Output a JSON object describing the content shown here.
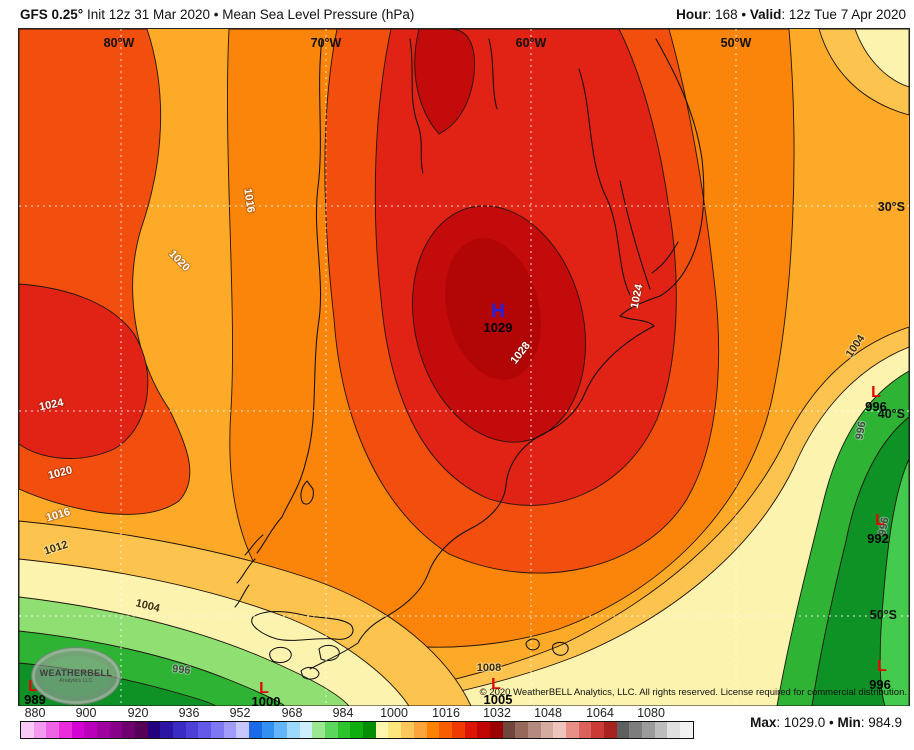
{
  "header": {
    "left_bold": "GFS 0.25°",
    "left_rest": " Init 12z 31 Mar 2020 • Mean Sea Level Pressure (hPa)",
    "right_b1": "Hour",
    "right_t1": ": 168 • ",
    "right_b2": "Valid",
    "right_t2": ": 12z Tue 7 Apr 2020"
  },
  "map": {
    "lon_labels": [
      "80°W",
      "70°W",
      "60°W",
      "50°W"
    ],
    "lat_labels": [
      "30°S",
      "40°S",
      "50°S"
    ],
    "labels": [
      "80°W",
      "70°W",
      "60°W",
      "50°W",
      "30°S",
      "40°S",
      "50°S",
      "H",
      "1029",
      "1016",
      "1020",
      "1024",
      "1020",
      "1016",
      "1012",
      "1028",
      "1024",
      "1004",
      "1004",
      "996",
      "1008",
      "996",
      "996",
      "L",
      "1000",
      "L",
      "989",
      "L",
      "1005",
      "L",
      "996",
      "L",
      "992",
      "L",
      "996"
    ],
    "high": {
      "symbol": "H",
      "value": "1029"
    },
    "lows": [
      {
        "symbol": "L",
        "value": "989"
      },
      {
        "symbol": "L",
        "value": "1000"
      },
      {
        "symbol": "L",
        "value": "1005"
      },
      {
        "symbol": "L",
        "value": "996"
      },
      {
        "symbol": "L",
        "value": "992"
      },
      {
        "symbol": "L",
        "value": "996"
      }
    ],
    "copyright": "© 2020 WeatherBELL Analytics, LLC. All rights reserved. License required for commercial distribution.",
    "logo": {
      "brand": "WEATHERBELL",
      "sub": "Analytics LLC"
    }
  },
  "colorbar": {
    "ticks": [
      "880",
      "900",
      "920",
      "936",
      "952",
      "968",
      "984",
      "1000",
      "1016",
      "1032",
      "1048",
      "1064",
      "1080"
    ],
    "colors": [
      "#f9c9f7",
      "#f49aee",
      "#ef63e5",
      "#ea2cdc",
      "#d303d3",
      "#ba00ba",
      "#a100a1",
      "#880088",
      "#6f006f",
      "#560056",
      "#22007e",
      "#2c14a4",
      "#3a2bc2",
      "#4c40d8",
      "#6359e8",
      "#7f78f3",
      "#a19cfa",
      "#c9c6fd",
      "#1b6be6",
      "#3190f2",
      "#63b5f8",
      "#9cd9fb",
      "#cdeffd",
      "#9ae88f",
      "#5cd65c",
      "#2cc32c",
      "#0eae0e",
      "#068d06",
      "#fdf6ae",
      "#fde67c",
      "#fdc75b",
      "#fda53b",
      "#fd8204",
      "#f85d02",
      "#ef3a02",
      "#dd1505",
      "#c00404",
      "#9c0101",
      "#6e463c",
      "#96685c",
      "#b58a7e",
      "#d4aca0",
      "#ecc4bc",
      "#e88f88",
      "#db625a",
      "#c93b34",
      "#a82220",
      "#5f5f5f",
      "#7d7d7d",
      "#9b9b9b",
      "#bcbcbc",
      "#e0e0e0",
      "#f2f2f2"
    ]
  },
  "footer": {
    "max_label": "Max",
    "max_text": ": 1029.0 • ",
    "min_label": "Min",
    "min_text": ": 984.9"
  },
  "colors": {
    "high_symbol": "#2020e8",
    "low_symbol": "#e30505",
    "band_orange": "#fcaa28",
    "band_dark_orange": "#fb840a",
    "band_red_orange": "#f24e0e",
    "band_red": "#e02315",
    "band_dark_red": "#c30b0b",
    "band_core_red": "#b20606",
    "band_amber": "#fcc34e",
    "band_pale_yellow": "#fcf3ae",
    "band_light_green": "#8fdf72",
    "band_green": "#2eb335",
    "band_dark_green": "#0e9226",
    "band_bright_green": "#44ca4c"
  }
}
